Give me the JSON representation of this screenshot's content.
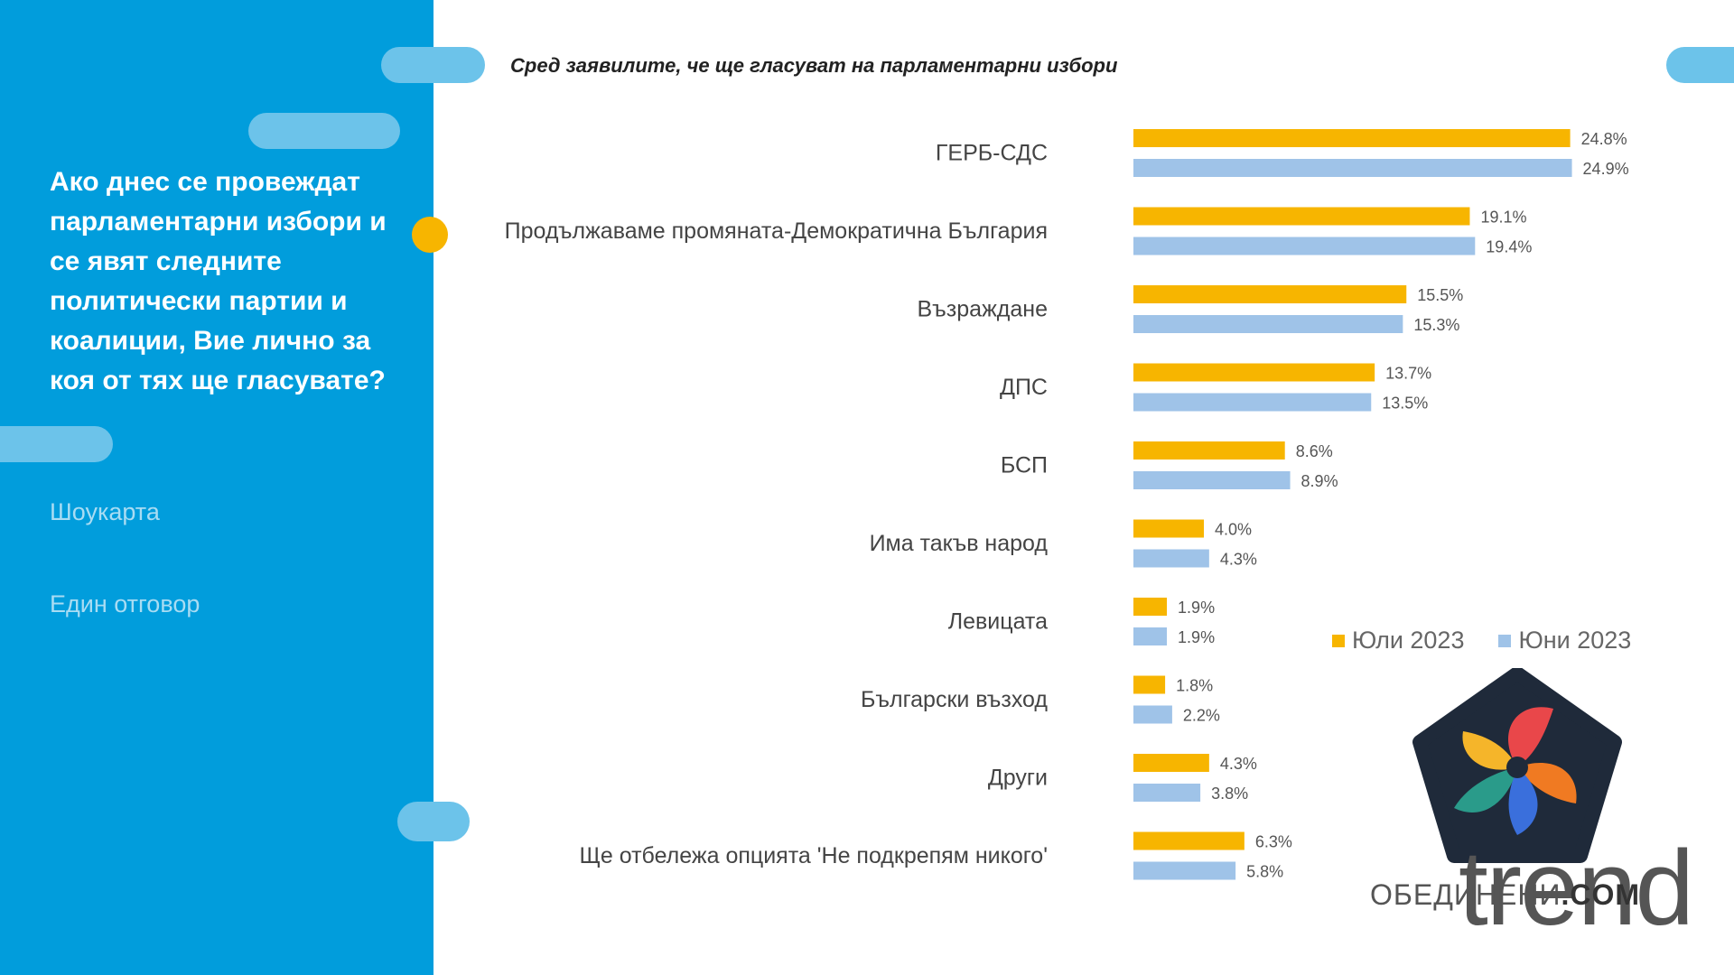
{
  "sidebar": {
    "question": "Ако днес се провеждат парламентарни избори и се явят следните политически партии и коалиции, Вие лично за коя от тях ще гласувате?",
    "method": "Шоукарта",
    "answer_type": "Един отговор"
  },
  "colors": {
    "panel": "#019ddc",
    "series_july": "#f7b500",
    "series_june": "#9fc3e8"
  },
  "chart_data": {
    "type": "bar",
    "orientation": "horizontal",
    "title": "Сред заявилите, че ще гласуват на парламентарни избори",
    "categories": [
      "ГЕРБ-СДС",
      "Продължаваме промяната-Демократична България",
      "Възраждане",
      "ДПС",
      "БСП",
      "Има такъв народ",
      "Левицата",
      "Български възход",
      "Други",
      "Ще отбележа опцията 'Не подкрепям никого'"
    ],
    "series": [
      {
        "name": "Юли 2023",
        "values": [
          24.8,
          19.1,
          15.5,
          13.7,
          8.6,
          4.0,
          1.9,
          1.8,
          4.3,
          6.3
        ],
        "labels": [
          "24.8%",
          "19.1%",
          "15.5%",
          "13.7%",
          "8.6%",
          "4.0%",
          "1.9%",
          "1.8%",
          "4.3%",
          "6.3%"
        ]
      },
      {
        "name": "Юни 2023",
        "values": [
          24.9,
          19.4,
          15.3,
          13.5,
          8.9,
          4.3,
          1.9,
          2.2,
          3.8,
          5.8
        ],
        "labels": [
          "24.9%",
          "19.4%",
          "15.3%",
          "13.5%",
          "8.9%",
          "4.3%",
          "1.9%",
          "2.2%",
          "3.8%",
          "5.8%"
        ]
      }
    ],
    "legend_position": "bottom-right",
    "grid": false
  },
  "brand": {
    "name_regular": "ОБЕДИНЕНИ",
    "name_bold": ".COM",
    "mark": "trend",
    "logo_icon": "pentagon-swirl-logo-icon"
  }
}
